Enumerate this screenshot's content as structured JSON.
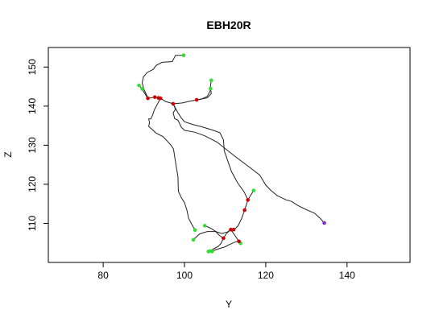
{
  "chart_data": {
    "type": "line",
    "title": "EBH20R",
    "xlabel": "Y",
    "ylabel": "Z",
    "xlim": [
      66.5,
      155.5
    ],
    "ylim": [
      100,
      155
    ],
    "xticks": [
      80,
      100,
      120,
      140
    ],
    "yticks": [
      110,
      120,
      130,
      140,
      150
    ],
    "grid": false,
    "legend": "none",
    "colors": {
      "line": "#222222",
      "endpoint": "#33dd33",
      "junction": "#cc0000",
      "root": "#8822dd"
    },
    "branches": [
      [
        [
          99.8,
          153.0
        ],
        [
          97.8,
          153.0
        ],
        [
          97.0,
          151.4
        ],
        [
          94.5,
          151.2
        ],
        [
          93.0,
          150.4
        ],
        [
          92.3,
          149.4
        ],
        [
          90.8,
          148.6
        ],
        [
          89.9,
          147.5
        ],
        [
          89.6,
          146.0
        ],
        [
          90.0,
          144.3
        ],
        [
          90.7,
          142.8
        ],
        [
          91.0,
          142.0
        ],
        [
          92.7,
          142.3
        ],
        [
          93.6,
          142.1
        ],
        [
          94.1,
          142.0
        ]
      ],
      [
        [
          88.8,
          145.3
        ],
        [
          89.5,
          144.5
        ],
        [
          90.3,
          143.1
        ],
        [
          91.0,
          142.0
        ]
      ],
      [
        [
          106.6,
          146.6
        ],
        [
          106.4,
          145.2
        ],
        [
          106.3,
          143.8
        ],
        [
          105.6,
          142.5
        ],
        [
          104.2,
          141.8
        ],
        [
          103.0,
          141.6
        ],
        [
          101.0,
          141.2
        ],
        [
          99.5,
          140.8
        ],
        [
          97.2,
          140.6
        ],
        [
          95.3,
          141.2
        ],
        [
          94.1,
          142.0
        ]
      ],
      [
        [
          106.4,
          144.5
        ],
        [
          106.6,
          143.2
        ],
        [
          105.6,
          142.1
        ],
        [
          104.0,
          141.8
        ],
        [
          103.0,
          141.6
        ]
      ],
      [
        [
          94.1,
          142.0
        ],
        [
          93.5,
          140.8
        ],
        [
          92.6,
          139.1
        ],
        [
          92.1,
          137.6
        ],
        [
          91.7,
          136.7
        ],
        [
          91.2,
          136.7
        ],
        [
          91.4,
          135.8
        ],
        [
          91.2,
          134.8
        ],
        [
          92.0,
          134.1
        ],
        [
          93.0,
          133.1
        ],
        [
          94.7,
          132.2
        ],
        [
          96.7,
          130.0
        ],
        [
          97.3,
          129.0
        ],
        [
          97.9,
          125.0
        ],
        [
          98.4,
          122.0
        ],
        [
          98.5,
          118.2
        ],
        [
          99.2,
          116.6
        ],
        [
          100.0,
          115.3
        ],
        [
          100.6,
          113.4
        ],
        [
          101.0,
          111.3
        ],
        [
          101.7,
          109.9
        ],
        [
          102.2,
          109.0
        ],
        [
          102.6,
          108.3
        ]
      ],
      [
        [
          97.2,
          140.6
        ],
        [
          97.8,
          139.2
        ],
        [
          97.2,
          138.3
        ],
        [
          97.6,
          136.8
        ],
        [
          98.4,
          136.4
        ],
        [
          99.2,
          134.6
        ],
        [
          100.0,
          133.8
        ],
        [
          102.6,
          133.3
        ],
        [
          105.0,
          132.4
        ],
        [
          108.0,
          130.8
        ],
        [
          112.0,
          127.5
        ],
        [
          116.2,
          124.2
        ],
        [
          118.5,
          122.4
        ],
        [
          120.0,
          119.8
        ],
        [
          121.2,
          118.5
        ],
        [
          122.8,
          117.1
        ],
        [
          125.0,
          116.0
        ],
        [
          126.4,
          115.6
        ],
        [
          128.0,
          114.5
        ],
        [
          130.0,
          113.5
        ],
        [
          132.0,
          112.6
        ],
        [
          133.3,
          111.4
        ],
        [
          134.4,
          110.1
        ]
      ],
      [
        [
          97.2,
          140.6
        ],
        [
          98.4,
          138.3
        ],
        [
          99.2,
          137.0
        ],
        [
          100.0,
          136.0
        ],
        [
          102.0,
          135.3
        ],
        [
          104.0,
          134.8
        ],
        [
          106.8,
          133.9
        ],
        [
          108.7,
          133.2
        ],
        [
          109.6,
          131.4
        ],
        [
          109.8,
          128.6
        ],
        [
          110.5,
          126.4
        ],
        [
          111.6,
          123.2
        ],
        [
          113.0,
          120.5
        ],
        [
          114.7,
          118.0
        ],
        [
          115.6,
          116.0
        ]
      ],
      [
        [
          117.0,
          118.4
        ],
        [
          115.6,
          116.0
        ],
        [
          114.8,
          113.4
        ],
        [
          114.1,
          111.3
        ],
        [
          113.2,
          109.4
        ],
        [
          112.2,
          108.4
        ],
        [
          111.4,
          108.4
        ]
      ],
      [
        [
          111.4,
          108.4
        ],
        [
          110.6,
          107.8
        ],
        [
          109.2,
          107.4
        ],
        [
          107.7,
          107.9
        ],
        [
          105.6,
          107.9
        ],
        [
          103.7,
          107.3
        ],
        [
          102.2,
          105.8
        ]
      ],
      [
        [
          111.4,
          108.4
        ],
        [
          112.2,
          107.2
        ],
        [
          113.4,
          105.4
        ],
        [
          113.8,
          104.9
        ]
      ],
      [
        [
          111.4,
          108.4
        ],
        [
          110.5,
          107.6
        ],
        [
          110.2,
          107.2
        ],
        [
          109.6,
          106.2
        ],
        [
          109.0,
          104.9
        ],
        [
          108.3,
          104.1
        ],
        [
          107.4,
          103.6
        ],
        [
          106.4,
          103.0
        ],
        [
          105.9,
          102.8
        ]
      ],
      [
        [
          109.6,
          106.2
        ],
        [
          108.6,
          106.9
        ],
        [
          107.6,
          108.0
        ],
        [
          106.4,
          108.8
        ],
        [
          105.0,
          109.4
        ]
      ],
      [
        [
          113.4,
          105.4
        ],
        [
          112.4,
          105.2
        ],
        [
          111.1,
          104.6
        ],
        [
          110.0,
          104.0
        ],
        [
          108.8,
          103.6
        ],
        [
          107.5,
          103.2
        ],
        [
          106.8,
          102.8
        ]
      ]
    ],
    "endpoints": [
      [
        99.8,
        153.0
      ],
      [
        88.8,
        145.3
      ],
      [
        89.6,
        144.4
      ],
      [
        106.6,
        146.6
      ],
      [
        106.4,
        144.5
      ],
      [
        117.0,
        118.4
      ],
      [
        102.6,
        108.3
      ],
      [
        102.2,
        105.8
      ],
      [
        105.0,
        109.4
      ],
      [
        113.8,
        104.9
      ],
      [
        105.9,
        102.8
      ],
      [
        106.8,
        102.8
      ],
      [
        106.3,
        102.9
      ]
    ],
    "junctions": [
      [
        91.0,
        142.0
      ],
      [
        92.7,
        142.3
      ],
      [
        93.6,
        142.1
      ],
      [
        94.1,
        142.0
      ],
      [
        97.2,
        140.6
      ],
      [
        103.0,
        141.6
      ],
      [
        115.6,
        116.0
      ],
      [
        114.8,
        113.4
      ],
      [
        111.4,
        108.4
      ],
      [
        112.1,
        108.4
      ],
      [
        109.6,
        106.2
      ],
      [
        113.4,
        105.4
      ]
    ],
    "root": [
      [
        134.4,
        110.1
      ]
    ]
  }
}
